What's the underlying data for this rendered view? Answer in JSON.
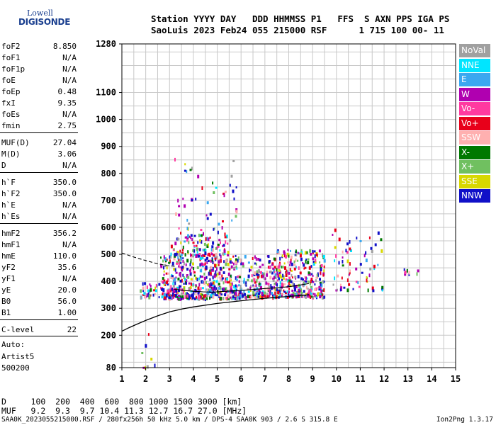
{
  "logo": {
    "line1": "Lowell",
    "line2": "DIGISONDE"
  },
  "header": {
    "labels": "Station YYYY DAY   DDD HHMMSS P1   FFS  S AXN PPS IGA PS",
    "values": "SaoLuis 2023 Feb24 055 215000 RSF      1 715 100 00- 11"
  },
  "params": [
    {
      "label": "foF2",
      "value": "8.850"
    },
    {
      "label": "foF1",
      "value": "N/A"
    },
    {
      "label": "foF1p",
      "value": "N/A"
    },
    {
      "label": "foE",
      "value": "N/A"
    },
    {
      "label": "foEp",
      "value": "0.48"
    },
    {
      "label": "fxI",
      "value": "9.35"
    },
    {
      "label": "foEs",
      "value": "N/A"
    },
    {
      "label": "fmin",
      "value": "2.75"
    },
    {
      "label": "MUF(D)",
      "value": "27.04"
    },
    {
      "label": "M(D)",
      "value": "3.06"
    },
    {
      "label": "D",
      "value": "N/A"
    },
    {
      "label": "h`F",
      "value": "350.0"
    },
    {
      "label": "h`F2",
      "value": "350.0"
    },
    {
      "label": "h`E",
      "value": "N/A"
    },
    {
      "label": "h`Es",
      "value": "N/A"
    },
    {
      "label": "hmF2",
      "value": "356.2"
    },
    {
      "label": "hmF1",
      "value": "N/A"
    },
    {
      "label": "hmE",
      "value": "110.0"
    },
    {
      "label": "yF2",
      "value": "35.6"
    },
    {
      "label": "yF1",
      "value": "N/A"
    },
    {
      "label": "yE",
      "value": "20.0"
    },
    {
      "label": "B0",
      "value": "56.0"
    },
    {
      "label": "B1",
      "value": "1.00"
    },
    {
      "label": "C-level",
      "value": "22"
    }
  ],
  "auto": {
    "line1": "Auto:",
    "line2": "Artist5",
    "line3": "500200"
  },
  "legend": [
    {
      "label": "NoVal",
      "color": "#a0a0a0"
    },
    {
      "label": "NNE",
      "color": "#00e5ff"
    },
    {
      "label": "E",
      "color": "#3aa8f0"
    },
    {
      "label": "W",
      "color": "#b000b0"
    },
    {
      "label": "Vo-",
      "color": "#ff3aa0"
    },
    {
      "label": "Vo+",
      "color": "#e8001a"
    },
    {
      "label": "SSW",
      "color": "#ffb0b0"
    },
    {
      "label": "X-",
      "color": "#007800"
    },
    {
      "label": "X+",
      "color": "#70c060"
    },
    {
      "label": "SSE",
      "color": "#d8d800"
    },
    {
      "label": "NNW",
      "color": "#1010c8"
    }
  ],
  "chart_data": {
    "type": "scatter",
    "x_ticks": [
      "1",
      "2",
      "3",
      "4",
      "5",
      "6",
      "7",
      "8",
      "9",
      "10",
      "11",
      "12",
      "13",
      "14",
      "15"
    ],
    "y_ticks": [
      "80",
      "200",
      "300",
      "400",
      "500",
      "600",
      "700",
      "800",
      "900",
      "1000",
      "1100",
      "1280"
    ],
    "xlim": [
      1,
      15
    ],
    "grid": true,
    "profile_curve": {
      "x": [
        1.0,
        1.3,
        1.6,
        2.0,
        2.5,
        3.0,
        3.5,
        4.0,
        5.0,
        6.0,
        7.0,
        8.0,
        8.85
      ],
      "y": [
        215,
        228,
        240,
        255,
        272,
        287,
        297,
        305,
        318,
        328,
        337,
        344,
        350
      ]
    },
    "dashed_curve": {
      "x": [
        1.0,
        1.5,
        2.0,
        2.5,
        2.9,
        3.3
      ],
      "y": [
        505,
        490,
        477,
        465,
        458,
        455
      ]
    },
    "trace_line": {
      "x": [
        3.2,
        3.6,
        4.0,
        4.4,
        4.8,
        5.2,
        5.6,
        6.0,
        6.4,
        6.8,
        7.2,
        7.6,
        8.0,
        8.4,
        8.85
      ],
      "y": [
        370,
        366,
        363,
        361,
        360,
        362,
        364,
        366,
        369,
        372,
        374,
        377,
        380,
        385,
        392
      ]
    },
    "echo_clusters": [
      {
        "x_range": [
          2.6,
          5.9
        ],
        "y_range": [
          340,
          500
        ],
        "density": 520
      },
      {
        "x_range": [
          3.0,
          5.5
        ],
        "y_range": [
          500,
          600
        ],
        "density": 120
      },
      {
        "x_range": [
          3.2,
          5.8
        ],
        "y_range": [
          600,
          860
        ],
        "density": 45
      },
      {
        "x_range": [
          5.7,
          7.6
        ],
        "y_range": [
          345,
          500
        ],
        "density": 220
      },
      {
        "x_range": [
          7.4,
          9.5
        ],
        "y_range": [
          345,
          520
        ],
        "density": 300
      },
      {
        "x_range": [
          9.8,
          11.9
        ],
        "y_range": [
          370,
          600
        ],
        "density": 70
      },
      {
        "x_range": [
          1.7,
          2.6
        ],
        "y_range": [
          345,
          400
        ],
        "density": 35
      },
      {
        "x_range": [
          12.8,
          13.4
        ],
        "y_range": [
          430,
          450
        ],
        "density": 8
      },
      {
        "x_range": [
          1.8,
          2.5
        ],
        "y_range": [
          80,
          220
        ],
        "density": 8
      }
    ]
  },
  "bottom": {
    "d_row": "D     100  200  400  600  800 1000 1500 3000 [km]",
    "muf_row": "MUF   9.2  9.3  9.7 10.4 11.3 12.7 16.7 27.0 [MHz]"
  },
  "footer": {
    "left": "SAA0K_2023055215000.RSF / 280fx256h 50 kHz 5.0 km / DPS-4 SAA0K 903 / 2.6 S 315.8 E",
    "right": "Ion2Png 1.3.17"
  }
}
